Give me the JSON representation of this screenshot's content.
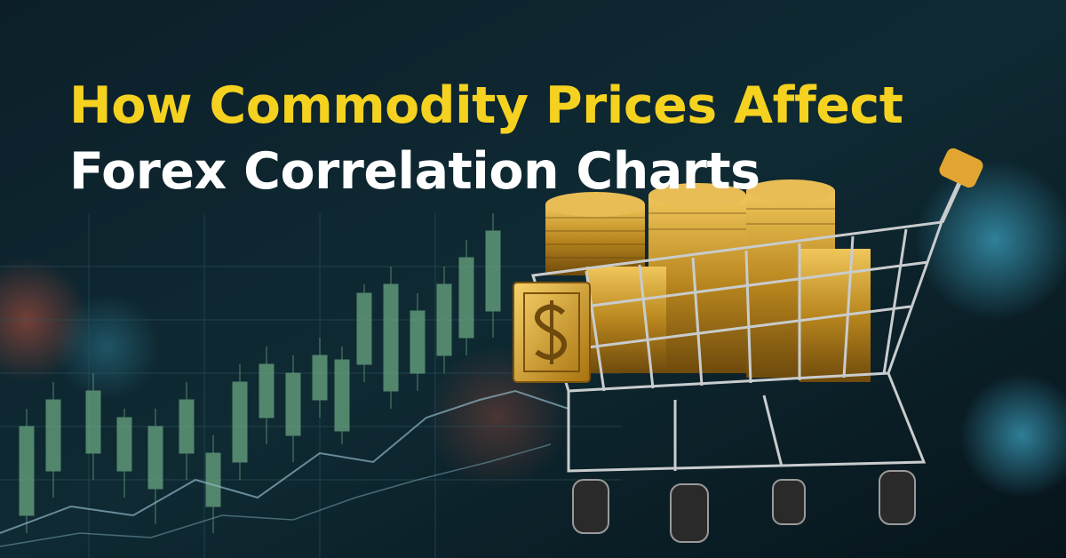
{
  "title": {
    "line1": "How Commodity Prices Affect",
    "line2": "Forex Correlation Charts"
  }
}
